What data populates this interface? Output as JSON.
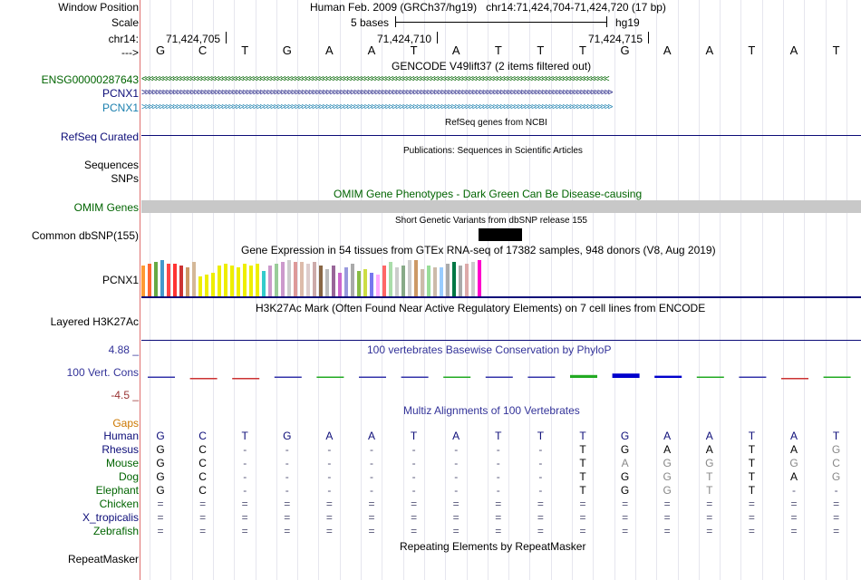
{
  "header": {
    "window_position_label": "Window Position",
    "window_position_value": "Human Feb. 2009 (GRCh37/hg19)   chr14:71,424,704-71,424,720 (17 bp)",
    "scale_label": "Scale",
    "scale_text": "5 bases",
    "scale_db": "hg19",
    "chrom_label": "chr14:",
    "strand_label": "--->",
    "positions": [
      "71,424,705",
      "71,424,710",
      "71,424,715"
    ]
  },
  "sequence": [
    "G",
    "C",
    "T",
    "G",
    "A",
    "A",
    "T",
    "A",
    "T",
    "T",
    "T",
    "G",
    "A",
    "A",
    "T",
    "A",
    "T"
  ],
  "tracks": {
    "gencode": {
      "title": "GENCODE V49lift37 (2 items filtered out)",
      "items": [
        {
          "label": "ENSG00000287643",
          "color": "#006400",
          "arrows": "<<<<<<<<<<<<<<<<<<<<<<<<<<<<<<<<<<<<<<<<<<<<<<<<<<<<<<<<<<<<<<<<<<<<<<<<<<<<<<<<<<<<<<<<<<<<<<<<<<<<<<<<<<<<<<<<<<<<<<<<<<<<<<<<<<<<<<"
        },
        {
          "label": "PCNX1",
          "color": "#0c0c78",
          "arrows": ">>>>>>>>>>>>>>>>>>>>>>>>>>>>>>>>>>>>>>>>>>>>>>>>>>>>>>>>>>>>>>>>>>>>>>>>>>>>>>>>>>>>>>>>>>>>>>>>>>>>>>>>>>>>>>>>>>>>>>>>>>>>>>>>>>>>>>>"
        },
        {
          "label": "PCNX1",
          "color": "#1a7fae",
          "arrows": ">>>>>>>>>>>>>>>>>>>>>>>>>>>>>>>>>>>>>>>>>>>>>>>>>>>>>>>>>>>>>>>>>>>>>>>>>>>>>>>>>>>>>>>>>>>>>>>>>>>>>>>>>>>>>>>>>>>>>>>>>>>>>>>>>>>>>>>"
        }
      ]
    },
    "refseq": {
      "title": "RefSeq genes from NCBI",
      "label": "RefSeq Curated",
      "color": "#0c0c78"
    },
    "publications": {
      "title": "Publications: Sequences in Scientific Articles",
      "label_line1": "Sequences",
      "label_line2": "SNPs"
    },
    "omim": {
      "title": "OMIM Gene Phenotypes - Dark Green Can Be Disease-causing",
      "label": "OMIM Genes",
      "color": "#006400"
    },
    "dbsnp": {
      "title": "Short Genetic Variants from dbSNP release 155",
      "label": "Common dbSNP(155)"
    },
    "gtex": {
      "title": "Gene Expression in 54 tissues from GTEx RNA-seq of 17382 samples, 948 donors (V8, Aug 2019)",
      "label": "PCNX1"
    },
    "h3k27ac": {
      "title": "H3K27Ac Mark (Often Found Near Active Regulatory Elements) on 7 cell lines from ENCODE",
      "label": "Layered H3K27Ac"
    },
    "phylop": {
      "title": "100 vertebrates Basewise Conservation by PhyloP",
      "label": "100 Vert. Cons",
      "max": "4.88 _",
      "min": "-4.5 _",
      "color": "#333399"
    },
    "multiz": {
      "title": "Multiz Alignments of 100 Vertebrates",
      "gaps_label": "Gaps",
      "species": [
        {
          "name": "Human",
          "color": "#0c0c78",
          "bases": [
            "G",
            "C",
            "T",
            "G",
            "A",
            "A",
            "T",
            "A",
            "T",
            "T",
            "T",
            "G",
            "A",
            "A",
            "T",
            "A",
            "T"
          ]
        },
        {
          "name": "Rhesus",
          "color": "#0c0c78",
          "bases": [
            "G",
            "C",
            "-",
            "-",
            "-",
            "-",
            "-",
            "-",
            "-",
            "-",
            "T",
            "G",
            "A",
            "A",
            "T",
            "A",
            "G"
          ]
        },
        {
          "name": "Mouse",
          "color": "#006400",
          "bases": [
            "G",
            "C",
            "-",
            "-",
            "-",
            "-",
            "-",
            "-",
            "-",
            "-",
            "T",
            "A",
            "G",
            "G",
            "T",
            "G",
            "C"
          ]
        },
        {
          "name": "Dog",
          "color": "#006400",
          "bases": [
            "G",
            "C",
            "-",
            "-",
            "-",
            "-",
            "-",
            "-",
            "-",
            "-",
            "T",
            "G",
            "G",
            "T",
            "T",
            "A",
            "G"
          ]
        },
        {
          "name": "Elephant",
          "color": "#006400",
          "bases": [
            "G",
            "C",
            "-",
            "-",
            "-",
            "-",
            "-",
            "-",
            "-",
            "-",
            "T",
            "G",
            "G",
            "T",
            "T",
            "-",
            "-"
          ]
        },
        {
          "name": "Chicken",
          "color": "#006400",
          "bases": [
            "=",
            "=",
            "=",
            "=",
            "=",
            "=",
            "=",
            "=",
            "=",
            "=",
            "=",
            "=",
            "=",
            "=",
            "=",
            "=",
            "="
          ]
        },
        {
          "name": "X_tropicalis",
          "color": "#0c0c78",
          "bases": [
            "=",
            "=",
            "=",
            "=",
            "=",
            "=",
            "=",
            "=",
            "=",
            "=",
            "=",
            "=",
            "=",
            "=",
            "=",
            "=",
            "="
          ]
        },
        {
          "name": "Zebrafish",
          "color": "#006400",
          "bases": [
            "=",
            "=",
            "=",
            "=",
            "=",
            "=",
            "=",
            "=",
            "=",
            "=",
            "=",
            "=",
            "=",
            "=",
            "=",
            "=",
            "="
          ]
        }
      ]
    },
    "repeatmasker": {
      "title": "Repeating Elements by RepeatMasker",
      "label": "RepeatMasker"
    }
  },
  "gtex_values": [
    0.85,
    0.9,
    0.95,
    1.0,
    0.9,
    0.9,
    0.85,
    0.8,
    0.95,
    0.55,
    0.6,
    0.65,
    0.85,
    0.9,
    0.85,
    0.8,
    0.9,
    0.85,
    0.9,
    0.7,
    0.85,
    0.9,
    0.95,
    1.0,
    0.95,
    0.95,
    0.9,
    0.95,
    0.85,
    0.75,
    0.85,
    0.65,
    0.8,
    0.9,
    0.7,
    0.75,
    0.65,
    0.6,
    0.85,
    0.95,
    0.8,
    0.85,
    1.0,
    1.0,
    0.75,
    0.85,
    0.8,
    0.8,
    0.9,
    0.95,
    0.85,
    0.9,
    0.95,
    1.0
  ],
  "gtex_colors": [
    "#ff9933",
    "#ff6633",
    "#66aa44",
    "#4499cc",
    "#ff4444",
    "#ff3333",
    "#cc3333",
    "#cc9966",
    "#d4b898",
    "#eeee00",
    "#eeee00",
    "#eeee00",
    "#eeee00",
    "#eeee00",
    "#eeee00",
    "#eeee00",
    "#eeee00",
    "#eeee00",
    "#eeee00",
    "#33cccc",
    "#cc99cc",
    "#99cc99",
    "#cc99cc",
    "#cccccc",
    "#dd9999",
    "#ddbbaa",
    "#ddcccc",
    "#ccaaaa",
    "#886644",
    "#bbbbbb",
    "#996699",
    "#cc66cc",
    "#9999dd",
    "#aaaaaa",
    "#88bb44",
    "#ccdd44",
    "#7777ee",
    "#ffaaff",
    "#ff6666",
    "#aaddaa",
    "#cccccc",
    "#88aa88",
    "#cccccc",
    "#cc9966",
    "#ccbbaa",
    "#99dd99",
    "#ccbbaa",
    "#99ccff",
    "#aaaaaa",
    "#007744",
    "#aaaaaa",
    "#ddaaaa",
    "#cccccc",
    "#ff00cc"
  ],
  "phylop_values": [
    0.1,
    -0.2,
    -0.1,
    0.15,
    0.1,
    0.1,
    0.15,
    0.15,
    0.2,
    0.15,
    0.8,
    1.2,
    0.6,
    0.15,
    0.1,
    -0.3,
    0.1
  ]
}
